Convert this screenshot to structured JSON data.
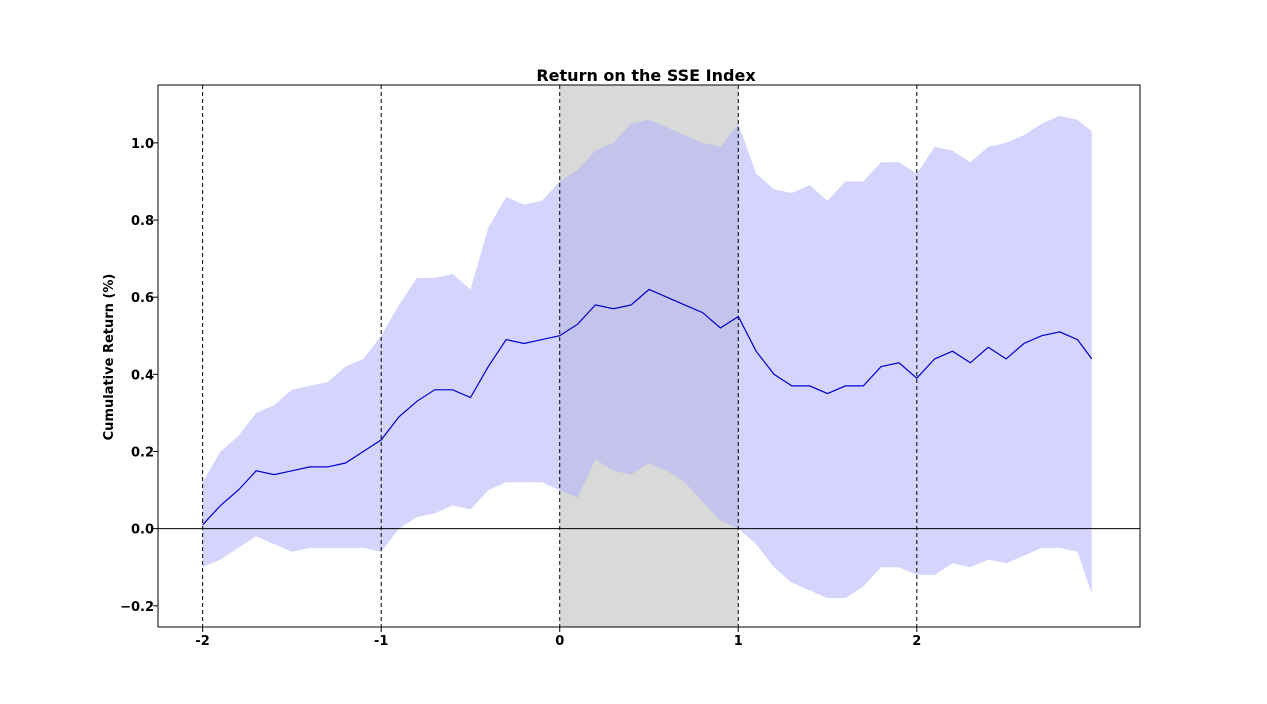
{
  "chart_data": {
    "type": "area",
    "title": "Return on the SSE Index",
    "xlabel": "",
    "ylabel": "Cumulative Return (%)",
    "xlim": [
      -2.25,
      3.25
    ],
    "ylim": [
      -0.255,
      1.15
    ],
    "x_ticks": [
      -2,
      -1,
      0,
      1,
      2
    ],
    "x_tick_labels": [
      "-2",
      "-1",
      "0",
      "1",
      "2"
    ],
    "y_ticks": [
      -0.2,
      0.0,
      0.2,
      0.4,
      0.6,
      0.8,
      1.0
    ],
    "y_tick_labels": [
      "−0.2",
      "0.0",
      "0.2",
      "0.4",
      "0.6",
      "0.8",
      "1.0"
    ],
    "vlines": [
      -2,
      -1,
      0,
      1,
      2
    ],
    "hline": 0.0,
    "shaded_region": [
      0,
      1
    ],
    "grid": false,
    "legend": "none",
    "colors": {
      "line": "#0000cc",
      "band": "#b0b0fb",
      "shade": "#d9d9d9"
    },
    "series": [
      {
        "x": [
          -2.0,
          -1.9,
          -1.8,
          -1.7,
          -1.6,
          -1.5,
          -1.4,
          -1.3,
          -1.2,
          -1.1,
          -1.0,
          -0.9,
          -0.8,
          -0.7,
          -0.6,
          -0.5,
          -0.4,
          -0.3,
          -0.2,
          -0.1,
          0.0,
          0.1,
          0.2,
          0.3,
          0.4,
          0.5,
          0.6,
          0.7,
          0.8,
          0.9,
          1.0,
          1.1,
          1.2,
          1.3,
          1.4,
          1.5,
          1.6,
          1.7,
          1.8,
          1.9,
          2.0,
          2.1,
          2.2,
          2.3,
          2.4,
          2.5,
          2.6,
          2.7,
          2.8,
          2.9,
          2.98
        ],
        "mean": [
          0.01,
          0.06,
          0.1,
          0.15,
          0.14,
          0.15,
          0.16,
          0.16,
          0.17,
          0.2,
          0.23,
          0.29,
          0.33,
          0.36,
          0.36,
          0.34,
          0.42,
          0.49,
          0.48,
          0.49,
          0.5,
          0.53,
          0.58,
          0.57,
          0.58,
          0.62,
          0.6,
          0.58,
          0.56,
          0.52,
          0.55,
          0.46,
          0.4,
          0.37,
          0.37,
          0.35,
          0.37,
          0.37,
          0.42,
          0.43,
          0.39,
          0.44,
          0.46,
          0.43,
          0.47,
          0.44,
          0.48,
          0.5,
          0.51,
          0.49,
          0.44
        ],
        "upper": [
          0.12,
          0.2,
          0.24,
          0.3,
          0.32,
          0.36,
          0.37,
          0.38,
          0.42,
          0.44,
          0.5,
          0.58,
          0.65,
          0.65,
          0.66,
          0.62,
          0.78,
          0.86,
          0.84,
          0.85,
          0.9,
          0.93,
          0.98,
          1.0,
          1.05,
          1.06,
          1.04,
          1.02,
          1.0,
          0.99,
          1.05,
          0.92,
          0.88,
          0.87,
          0.89,
          0.85,
          0.9,
          0.9,
          0.95,
          0.95,
          0.92,
          0.99,
          0.98,
          0.95,
          0.99,
          1.0,
          1.02,
          1.05,
          1.07,
          1.06,
          1.03
        ],
        "lower": [
          -0.1,
          -0.08,
          -0.05,
          -0.02,
          -0.04,
          -0.06,
          -0.05,
          -0.05,
          -0.05,
          -0.05,
          -0.06,
          0.0,
          0.03,
          0.04,
          0.06,
          0.05,
          0.1,
          0.12,
          0.12,
          0.12,
          0.1,
          0.08,
          0.18,
          0.15,
          0.14,
          0.17,
          0.15,
          0.12,
          0.07,
          0.02,
          0.0,
          -0.04,
          -0.1,
          -0.14,
          -0.16,
          -0.18,
          -0.18,
          -0.15,
          -0.1,
          -0.1,
          -0.12,
          -0.12,
          -0.09,
          -0.1,
          -0.08,
          -0.09,
          -0.07,
          -0.05,
          -0.05,
          -0.06,
          -0.17
        ]
      }
    ]
  }
}
